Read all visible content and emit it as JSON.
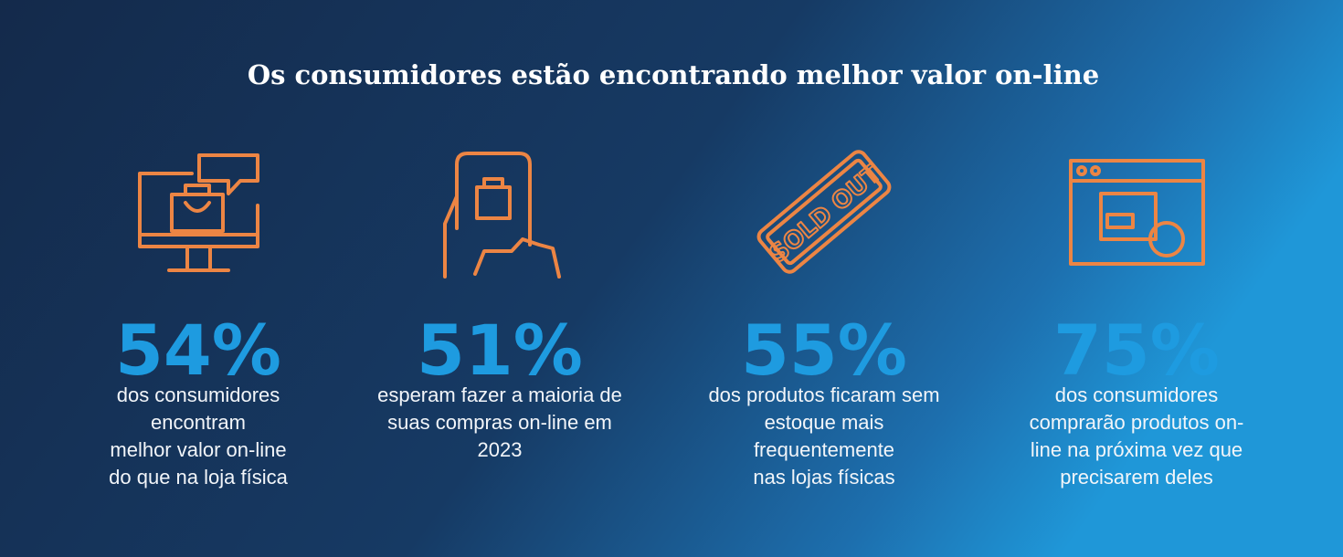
{
  "title": "Os consumidores estão encontrando melhor valor on-line",
  "stats": [
    {
      "value": "54%",
      "lines": [
        "dos consumidores",
        "encontram",
        "melhor valor on-line",
        "do que na loja física"
      ]
    },
    {
      "value": "51%",
      "lines": [
        "esperam fazer a maioria de",
        "suas compras on-line em",
        "2023"
      ]
    },
    {
      "value": "55%",
      "lines": [
        "dos produtos ficaram sem",
        "estoque mais",
        "frequentemente",
        "nas lojas físicas"
      ]
    },
    {
      "value": "75%",
      "lines": [
        "dos consumidores",
        "comprarão produtos on-",
        "line na próxima vez que",
        "precisarem deles"
      ]
    }
  ]
}
